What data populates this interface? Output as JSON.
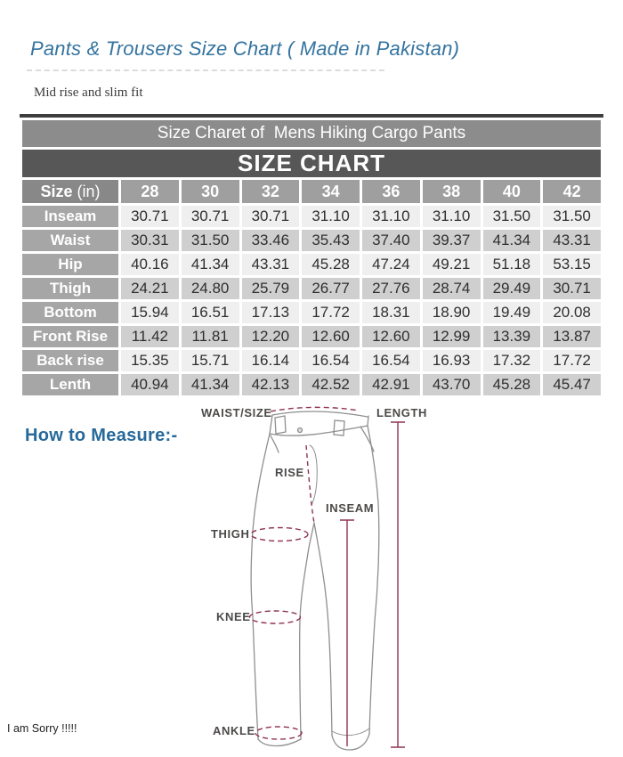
{
  "page": {
    "title": "Pants & Trousers Size Chart ( Made in Pakistan)",
    "subtitle": "Mid rise and slim fit",
    "how_to_measure": "How to Measure:-",
    "sorry_note": "I am Sorry !!!!!"
  },
  "chart_data": {
    "type": "table",
    "caption": "Size Charet of  Mens Hiking Cargo Pants",
    "title": "SIZE CHART",
    "unit_header": {
      "bold": "Size",
      "rest": " (in)"
    },
    "columns": [
      "28",
      "30",
      "32",
      "34",
      "36",
      "38",
      "40",
      "42"
    ],
    "rows": [
      {
        "label": "Inseam",
        "values": [
          "30.71",
          "30.71",
          "30.71",
          "31.10",
          "31.10",
          "31.10",
          "31.50",
          "31.50"
        ]
      },
      {
        "label": "Waist",
        "values": [
          "30.31",
          "31.50",
          "33.46",
          "35.43",
          "37.40",
          "39.37",
          "41.34",
          "43.31"
        ]
      },
      {
        "label": "Hip",
        "values": [
          "40.16",
          "41.34",
          "43.31",
          "45.28",
          "47.24",
          "49.21",
          "51.18",
          "53.15"
        ]
      },
      {
        "label": "Thigh",
        "values": [
          "24.21",
          "24.80",
          "25.79",
          "26.77",
          "27.76",
          "28.74",
          "29.49",
          "30.71"
        ]
      },
      {
        "label": "Bottom",
        "values": [
          "15.94",
          "16.51",
          "17.13",
          "17.72",
          "18.31",
          "18.90",
          "19.49",
          "20.08"
        ]
      },
      {
        "label": "Front Rise",
        "values": [
          "11.42",
          "11.81",
          "12.20",
          "12.60",
          "12.60",
          "12.99",
          "13.39",
          "13.87"
        ]
      },
      {
        "label": "Back rise",
        "values": [
          "15.35",
          "15.71",
          "16.14",
          "16.54",
          "16.54",
          "16.93",
          "17.32",
          "17.72"
        ]
      },
      {
        "label": "Lenth",
        "values": [
          "40.94",
          "41.34",
          "42.13",
          "42.52",
          "42.91",
          "43.70",
          "45.28",
          "45.47"
        ]
      }
    ]
  },
  "diagram": {
    "labels": {
      "waist": "WAIST/SIZE",
      "length": "LENGTH",
      "rise": "RISE",
      "inseam": "INSEAM",
      "thigh": "THIGH",
      "knee": "KNEE",
      "ankle": "ANKLE"
    }
  },
  "colors": {
    "title_blue": "#35749f",
    "heading_blue": "#27699a",
    "caption_gray": "#8c8c8c",
    "chart_band_gray": "#575757",
    "header_gray": "#9f9f9f",
    "row_label_gray": "#a6a6a6",
    "row_light": "#efefef",
    "row_dark": "#cfcfcf",
    "measure_maroon": "#8f3350",
    "pants_outline_gray": "#8f8f8f"
  }
}
